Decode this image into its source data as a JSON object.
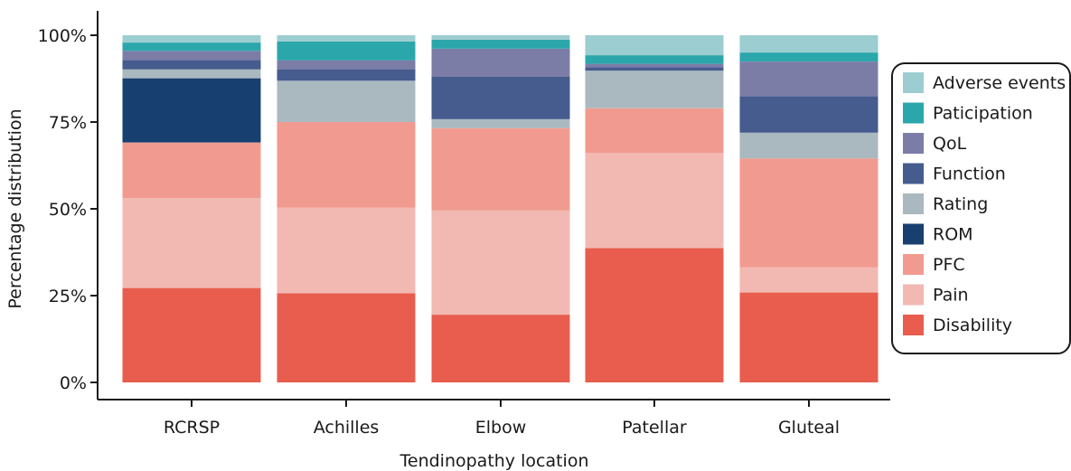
{
  "chart_data": {
    "type": "bar",
    "stacked": true,
    "percent_scale": true,
    "title": "",
    "xlabel": "Tendinopathy location",
    "ylabel": "Percentage distribution",
    "ylim": [
      0,
      100
    ],
    "yticks": [
      0,
      25,
      50,
      75,
      100
    ],
    "ytick_labels": [
      "0%",
      "25%",
      "50%",
      "75%",
      "100%"
    ],
    "categories": [
      "RCRSP",
      "Achilles",
      "Elbow",
      "Patellar",
      "Gluteal"
    ],
    "series": [
      {
        "name": "Disability",
        "color": "#e85d4e",
        "values": [
          27.2,
          25.7,
          19.7,
          39.0,
          26.0
        ]
      },
      {
        "name": "Pain",
        "color": "#f2b9b3",
        "values": [
          25.9,
          24.6,
          30.3,
          27.6,
          7.3
        ]
      },
      {
        "name": "PFC",
        "color": "#f19b90",
        "values": [
          16.0,
          24.7,
          24.0,
          13.0,
          31.5
        ]
      },
      {
        "name": "ROM",
        "color": "#173f70",
        "values": [
          18.5,
          0.0,
          0.0,
          0.0,
          0.0
        ]
      },
      {
        "name": "Rating",
        "color": "#a9b9bf",
        "values": [
          2.6,
          11.9,
          2.6,
          10.9,
          7.4
        ]
      },
      {
        "name": "Function",
        "color": "#465b8e",
        "values": [
          2.7,
          3.3,
          12.3,
          1.0,
          10.6
        ]
      },
      {
        "name": "QoL",
        "color": "#7b7da7",
        "values": [
          2.6,
          2.6,
          8.2,
          1.0,
          10.0
        ]
      },
      {
        "name": "Paticipation",
        "color": "#2ba7ac",
        "values": [
          2.4,
          5.4,
          2.6,
          2.5,
          2.6
        ]
      },
      {
        "name": "Adverse events",
        "color": "#9ccdd0",
        "values": [
          2.1,
          1.8,
          1.3,
          5.8,
          5.0
        ]
      }
    ],
    "legend": {
      "position": "right",
      "order": [
        "Adverse events",
        "Paticipation",
        "QoL",
        "Function",
        "Rating",
        "ROM",
        "PFC",
        "Pain",
        "Disability"
      ]
    },
    "grid": false
  }
}
